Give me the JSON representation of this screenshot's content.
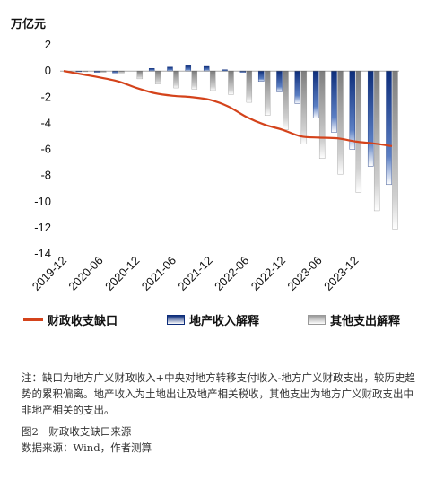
{
  "unit_label": "万亿元",
  "legend": {
    "gap_label": "财政收支缺口",
    "property_label": "地产收入解释",
    "other_label": "其他支出解释"
  },
  "note": "注：缺口为地方广义财政收入+中央对地方转移支付收入-地方广义财政支出，较历史趋势的累积偏离。地产收入为土地出让及地产相关税收，其他支出为地方广义财政支出中非地产相关的支出。",
  "figure_title": "图2　财政收支缺口来源",
  "source": "数据来源：Wind，作者测算",
  "chart_data": {
    "type": "bar",
    "y_ticks": [
      2,
      0,
      -2,
      -4,
      -6,
      -8,
      -10,
      -12,
      -14
    ],
    "ylim": [
      -14,
      2
    ],
    "x_tick_labels": [
      "2019-12",
      "2020-06",
      "2020-12",
      "2021-06",
      "2021-12",
      "2022-06",
      "2022-12",
      "2023-06",
      "2023-12"
    ],
    "categories": [
      "2019-12",
      "2020-03",
      "2020-06",
      "2020-09",
      "2020-12",
      "2021-03",
      "2021-06",
      "2021-09",
      "2021-12",
      "2022-03",
      "2022-06",
      "2022-09",
      "2022-12",
      "2023-03",
      "2023-06",
      "2023-09",
      "2023-12",
      "2024-03",
      "2024-06"
    ],
    "series": [
      {
        "name": "财政收支缺口",
        "kind": "line",
        "color": "#d4431b",
        "values": [
          0,
          -0.25,
          -0.5,
          -0.8,
          -1.3,
          -1.7,
          -1.9,
          -2.0,
          -2.2,
          -2.7,
          -3.5,
          -4.1,
          -4.5,
          -5.0,
          -5.1,
          -5.15,
          -5.4,
          -5.55,
          -5.75
        ]
      },
      {
        "name": "地产收入解释",
        "kind": "bar",
        "color": "#0d2d7a",
        "values": [
          0,
          -0.05,
          -0.1,
          -0.15,
          0,
          0.2,
          0.3,
          0.4,
          0.35,
          0.1,
          -0.1,
          -0.8,
          -1.6,
          -2.5,
          -3.6,
          -4.7,
          -6.0,
          -7.3,
          -8.7
        ]
      },
      {
        "name": "其他支出解释",
        "kind": "bar",
        "color": "#9a9a9a",
        "values": [
          0,
          -0.05,
          -0.1,
          -0.15,
          -0.6,
          -1.0,
          -1.3,
          -1.4,
          -1.5,
          -1.8,
          -2.4,
          -3.4,
          -4.5,
          -5.6,
          -6.7,
          -7.9,
          -9.3,
          -10.7,
          -12.1
        ]
      }
    ]
  }
}
